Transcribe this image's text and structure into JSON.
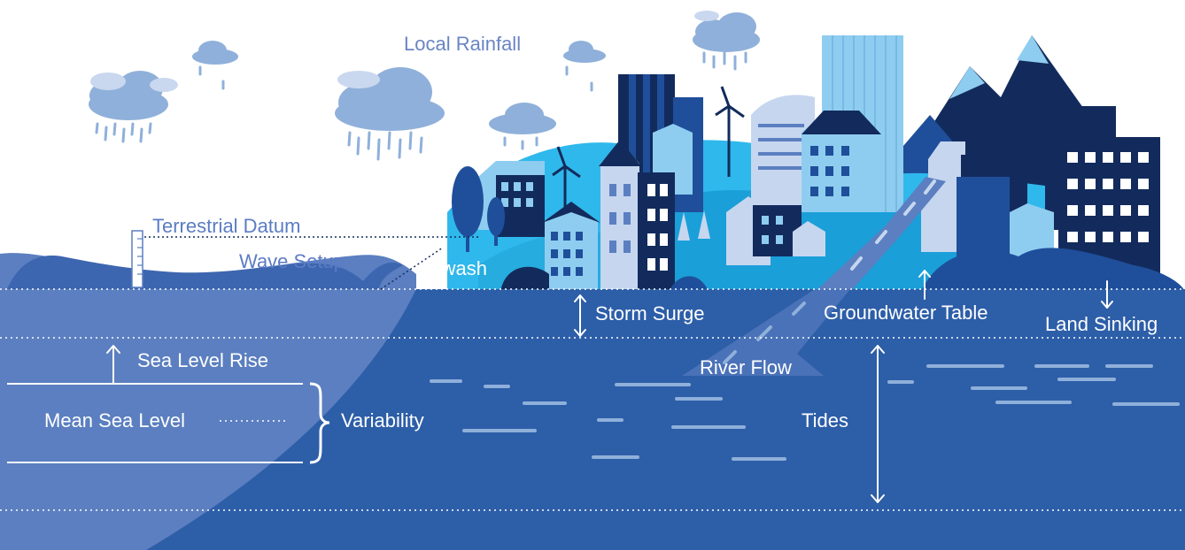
{
  "labels": {
    "local_rainfall": "Local Rainfall",
    "terrestrial_datum": "Terrestrial Datum",
    "wave_setup": "Wave Setup",
    "swash": "Swash",
    "storm_surge": "Storm Surge",
    "groundwater_table": "Groundwater Table",
    "land_sinking": "Land Sinking",
    "sea_level_rise": "Sea Level Rise",
    "mean_sea_level": "Mean Sea Level",
    "variability": "Variability",
    "river_flow": "River Flow",
    "tides": "Tides"
  },
  "colors": {
    "ocean": "#2d5ea8",
    "ocean_shelf": "#5b7fc0",
    "wave": "#4a72b8",
    "navy": "#132b5c",
    "mid_blue": "#1f4f9a",
    "light_blue": "#2fb8ec",
    "pale_blue": "#8ecdf0",
    "cloud": "#8fb0da",
    "rain": "#8fb0da",
    "label_sky": "#6a84c4",
    "white": "#ffffff"
  }
}
